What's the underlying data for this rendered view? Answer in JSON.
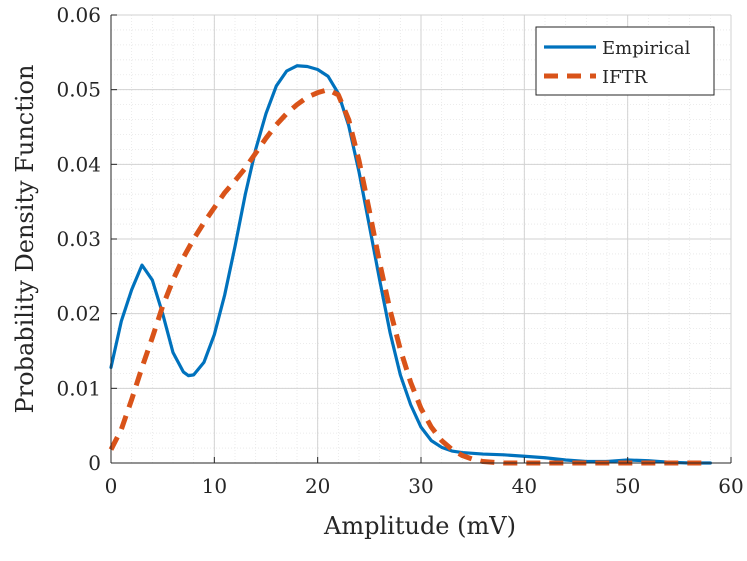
{
  "chart_data": {
    "type": "line",
    "title": "",
    "xlabel": "Amplitude (mV)",
    "ylabel": "Probability Density Function",
    "xlim": [
      0,
      60
    ],
    "ylim": [
      0,
      0.06
    ],
    "xticks": [
      0,
      10,
      20,
      30,
      40,
      50,
      60
    ],
    "yticks": [
      0,
      0.01,
      0.02,
      0.03,
      0.04,
      0.05,
      0.06
    ],
    "xtick_labels": [
      "0",
      "10",
      "20",
      "30",
      "40",
      "50",
      "60"
    ],
    "ytick_labels": [
      "0",
      "0.01",
      "0.02",
      "0.03",
      "0.04",
      "0.05",
      "0.06"
    ],
    "grid": true,
    "minor_grid": true,
    "legend_position": "top-right",
    "series": [
      {
        "name": "Empirical",
        "color": "#0072BD",
        "style": "solid",
        "x": [
          0,
          1,
          2,
          3,
          4,
          5,
          6,
          7,
          7.5,
          8,
          9,
          10,
          11,
          12,
          13,
          14,
          15,
          16,
          17,
          18,
          19,
          20,
          21,
          22,
          23,
          24,
          25,
          26,
          27,
          28,
          29,
          30,
          31,
          32,
          33,
          34,
          35,
          36,
          38,
          40,
          42,
          44,
          46,
          48,
          50,
          52,
          54,
          56,
          58
        ],
        "y": [
          0.0128,
          0.019,
          0.0232,
          0.0265,
          0.0245,
          0.02,
          0.0148,
          0.0122,
          0.0117,
          0.0118,
          0.0135,
          0.0172,
          0.0225,
          0.029,
          0.036,
          0.042,
          0.0468,
          0.0505,
          0.0525,
          0.0532,
          0.0531,
          0.0527,
          0.0518,
          0.0495,
          0.0452,
          0.039,
          0.0318,
          0.0245,
          0.0175,
          0.0118,
          0.0078,
          0.0048,
          0.003,
          0.0021,
          0.0016,
          0.0014,
          0.0013,
          0.0012,
          0.0011,
          0.0009,
          0.0007,
          0.0004,
          0.0002,
          0.0002,
          0.0004,
          0.0003,
          0.0001,
          0.0,
          0.0
        ]
      },
      {
        "name": "IFTR",
        "color": "#D95319",
        "style": "dashed",
        "x": [
          0,
          1,
          2,
          3,
          4,
          5,
          6,
          7,
          8,
          9,
          10,
          11,
          12,
          13,
          14,
          15,
          16,
          17,
          18,
          19,
          20,
          21,
          22,
          23,
          24,
          25,
          26,
          27,
          28,
          29,
          30,
          31,
          32,
          33,
          34,
          35,
          36,
          38,
          40,
          42,
          44,
          46,
          48,
          50,
          52,
          54,
          56,
          58
        ],
        "y": [
          0.0018,
          0.0045,
          0.0085,
          0.0128,
          0.0168,
          0.021,
          0.0245,
          0.0275,
          0.03,
          0.0322,
          0.0342,
          0.0362,
          0.0378,
          0.0395,
          0.0415,
          0.0435,
          0.0453,
          0.0468,
          0.048,
          0.049,
          0.0496,
          0.05,
          0.0493,
          0.046,
          0.0405,
          0.0338,
          0.0268,
          0.0205,
          0.0152,
          0.0108,
          0.0073,
          0.0048,
          0.003,
          0.0018,
          0.001,
          0.0005,
          0.0002,
          0.0,
          0.0,
          0.0,
          0.0,
          0.0,
          0.0,
          0.0,
          0.0,
          0.0,
          0.0,
          0.0
        ]
      }
    ]
  }
}
